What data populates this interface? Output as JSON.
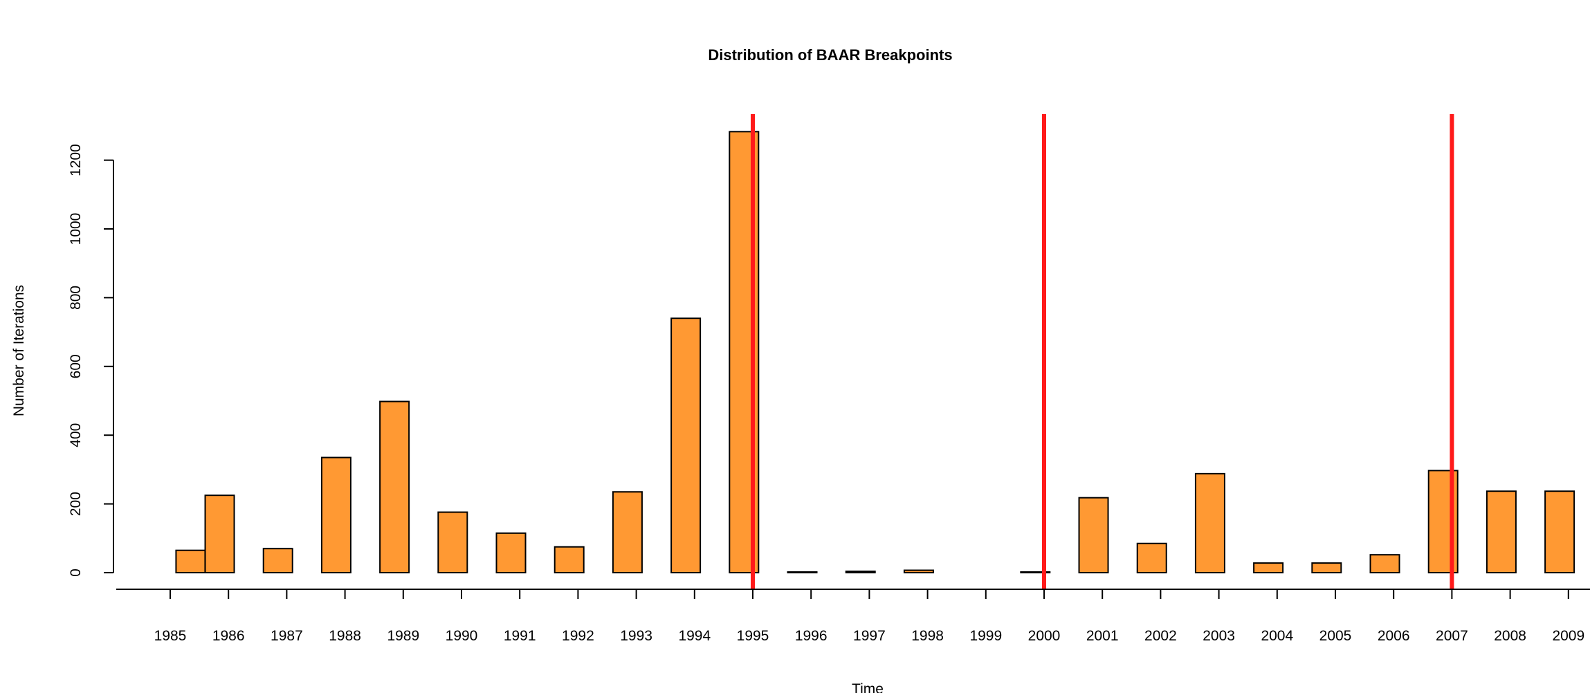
{
  "chart_data": {
    "type": "bar",
    "title": "Distribution of BAAR Breakpoints",
    "xlabel": "Time",
    "ylabel": "Number of Iterations",
    "ylim": [
      0,
      1280
    ],
    "y_ticks": [
      0,
      200,
      400,
      600,
      800,
      1000,
      1200
    ],
    "x_ticks": [
      "1985",
      "1986",
      "1987",
      "1988",
      "1989",
      "1990",
      "1991",
      "1992",
      "1993",
      "1994",
      "1995",
      "1996",
      "1997",
      "1998",
      "1999",
      "2000",
      "2001",
      "2002",
      "2003",
      "2004",
      "2005",
      "2006",
      "2007",
      "2008",
      "2009"
    ],
    "bars": [
      {
        "x": 1985.1,
        "value": 65
      },
      {
        "x": 1985.6,
        "value": 225
      },
      {
        "x": 1986.6,
        "value": 70
      },
      {
        "x": 1987.6,
        "value": 335
      },
      {
        "x": 1988.6,
        "value": 498
      },
      {
        "x": 1989.6,
        "value": 176
      },
      {
        "x": 1990.6,
        "value": 115
      },
      {
        "x": 1991.6,
        "value": 75
      },
      {
        "x": 1992.6,
        "value": 235
      },
      {
        "x": 1993.6,
        "value": 740
      },
      {
        "x": 1994.6,
        "value": 1283
      },
      {
        "x": 1995.6,
        "value": 2
      },
      {
        "x": 1996.6,
        "value": 4
      },
      {
        "x": 1997.6,
        "value": 7
      },
      {
        "x": 1998.6,
        "value": 0
      },
      {
        "x": 1999.6,
        "value": 2
      },
      {
        "x": 2000.6,
        "value": 218
      },
      {
        "x": 2001.6,
        "value": 85
      },
      {
        "x": 2002.6,
        "value": 288
      },
      {
        "x": 2003.6,
        "value": 28
      },
      {
        "x": 2004.6,
        "value": 28
      },
      {
        "x": 2005.6,
        "value": 52
      },
      {
        "x": 2006.6,
        "value": 297
      },
      {
        "x": 2007.6,
        "value": 237
      },
      {
        "x": 2008.6,
        "value": 237
      }
    ],
    "bar_color": "#ff9933",
    "breakpoints": [
      1995,
      2000,
      2007
    ],
    "breakpoint_color": "#ff1a1a",
    "grid": false,
    "legend": "none"
  }
}
